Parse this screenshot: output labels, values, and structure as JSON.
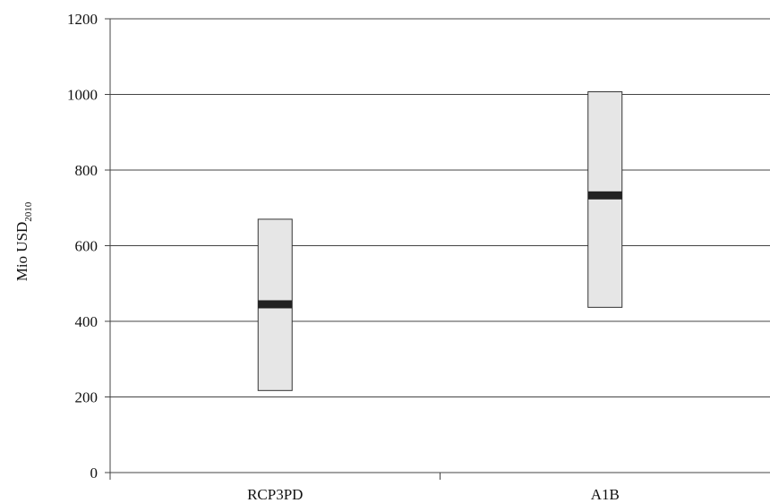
{
  "chart_data": {
    "type": "box",
    "categories": [
      "RCP3PD",
      "A1B"
    ],
    "series": [
      {
        "boxes": [
          {
            "category": "RCP3PD",
            "low": 217,
            "high": 670,
            "median": 445
          },
          {
            "category": "A1B",
            "low": 437,
            "high": 1007,
            "median": 733
          }
        ]
      }
    ],
    "ylabel": "Mio USD",
    "ylabel_subscript": "2010",
    "ylim": [
      0,
      1200
    ],
    "yticks": [
      0,
      200,
      400,
      600,
      800,
      1000,
      1200
    ],
    "grid": true,
    "colors": {
      "box_fill": "#e6e6e6",
      "box_stroke": "#333333",
      "median": "#222222",
      "grid": "#444444"
    }
  }
}
